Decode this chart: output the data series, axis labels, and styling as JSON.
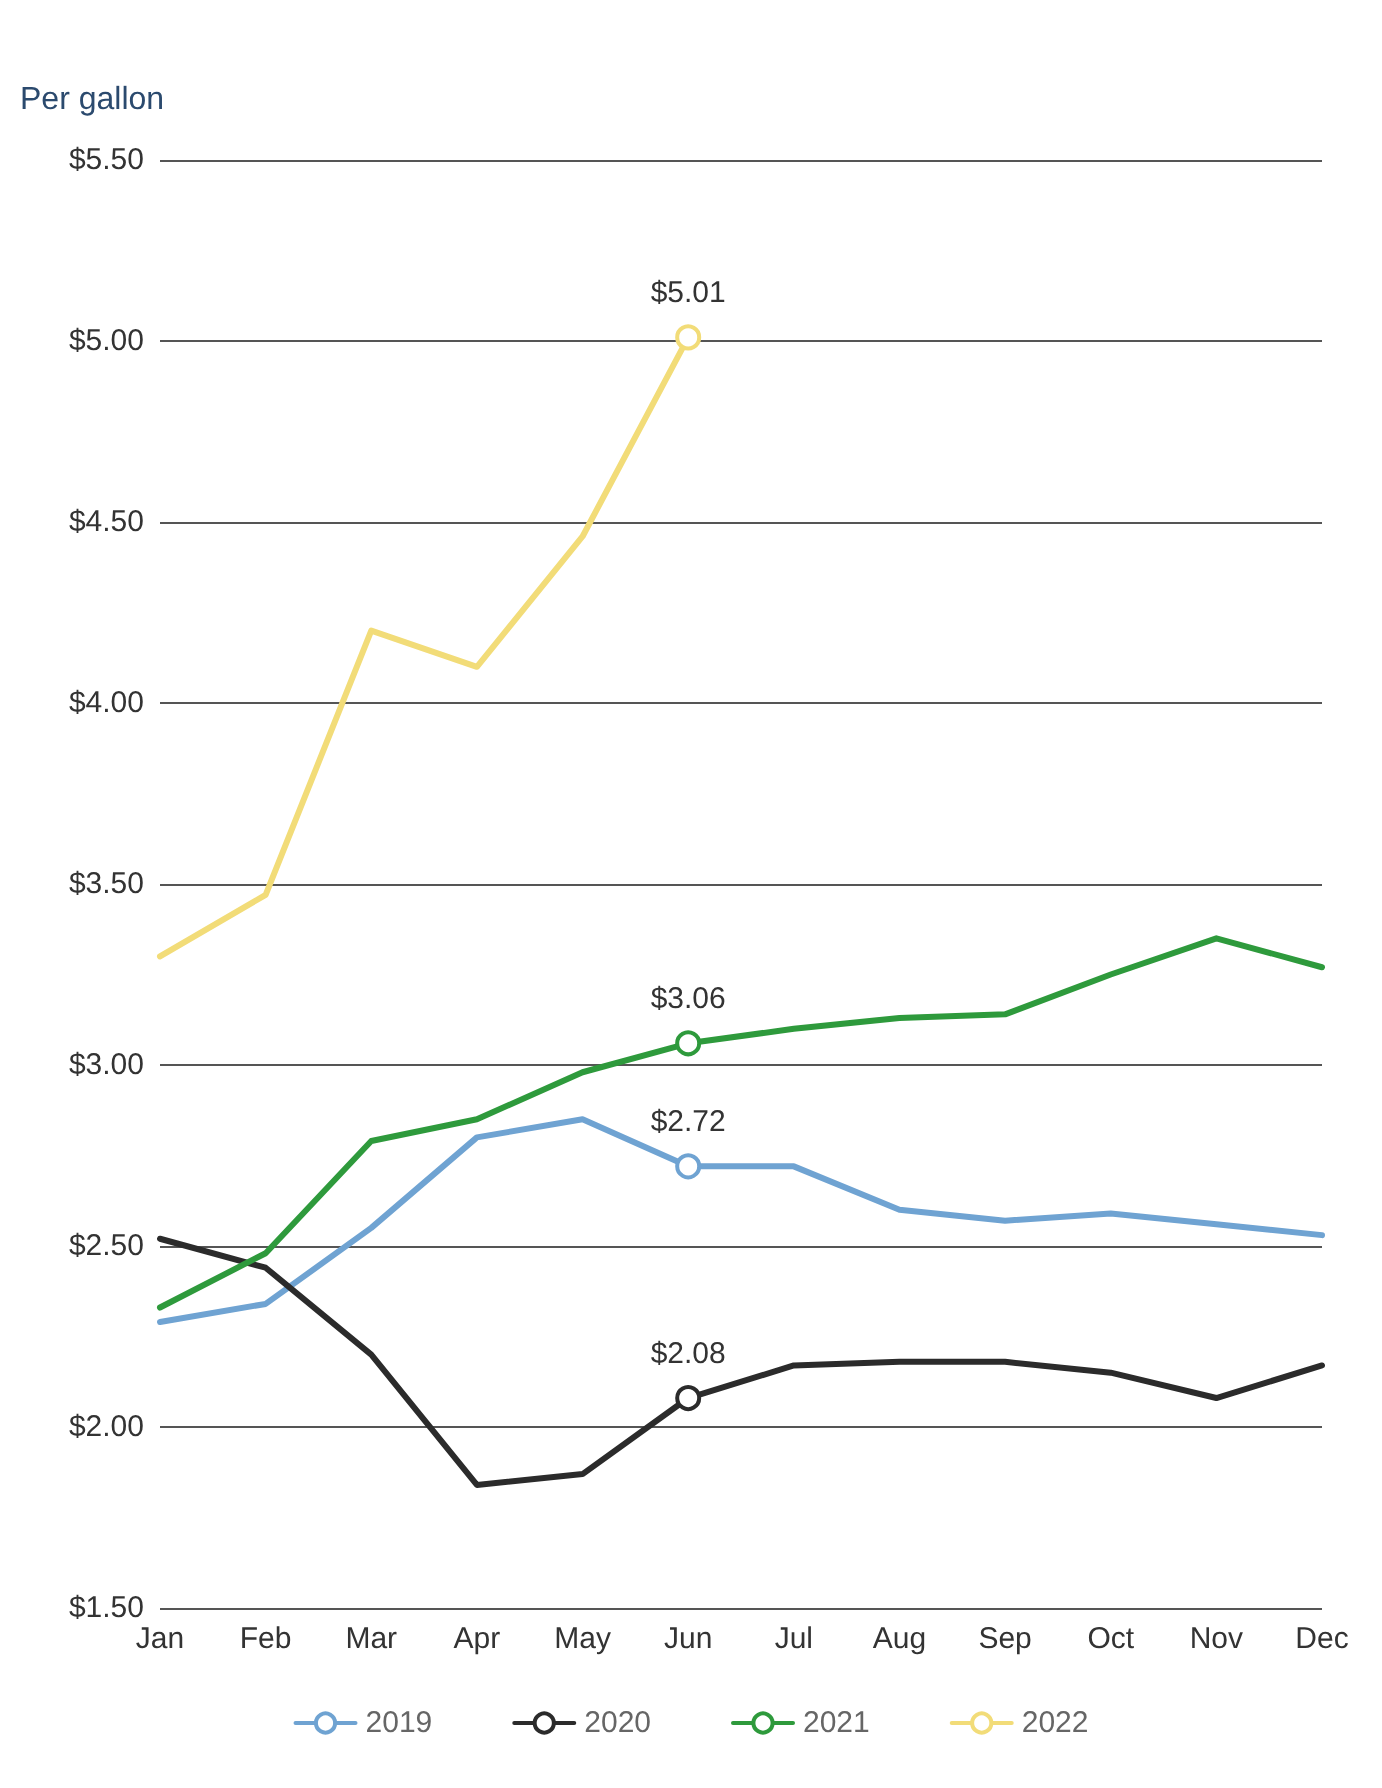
{
  "chart_data": {
    "type": "line",
    "ylabel": "Per gallon",
    "categories": [
      "Jan",
      "Feb",
      "Mar",
      "Apr",
      "May",
      "Jun",
      "Jul",
      "Aug",
      "Sep",
      "Oct",
      "Nov",
      "Dec"
    ],
    "series": [
      {
        "name": "2019",
        "color": "#6fa3d2",
        "values": [
          2.29,
          2.34,
          2.55,
          2.8,
          2.85,
          2.72,
          2.72,
          2.6,
          2.57,
          2.59,
          2.56,
          2.53
        ],
        "value_labels": [
          null,
          null,
          null,
          null,
          null,
          "$2.72",
          null,
          null,
          null,
          null,
          null,
          null
        ]
      },
      {
        "name": "2020",
        "color": "#2b2b2b",
        "values": [
          2.52,
          2.44,
          2.2,
          1.84,
          1.87,
          2.08,
          2.17,
          2.18,
          2.18,
          2.15,
          2.08,
          2.17
        ],
        "value_labels": [
          null,
          null,
          null,
          null,
          null,
          "$2.08",
          null,
          null,
          null,
          null,
          null,
          null
        ]
      },
      {
        "name": "2021",
        "color": "#2e9a3c",
        "values": [
          2.33,
          2.48,
          2.79,
          2.85,
          2.98,
          3.06,
          3.1,
          3.13,
          3.14,
          3.25,
          3.35,
          3.27
        ],
        "value_labels": [
          null,
          null,
          null,
          null,
          null,
          "$3.06",
          null,
          null,
          null,
          null,
          null,
          null
        ]
      },
      {
        "name": "2022",
        "color": "#f2dc78",
        "values": [
          3.3,
          3.47,
          4.2,
          4.1,
          4.46,
          5.01,
          null,
          null,
          null,
          null,
          null,
          null
        ],
        "value_labels": [
          null,
          null,
          null,
          null,
          null,
          "$5.01",
          null,
          null,
          null,
          null,
          null,
          null
        ]
      }
    ],
    "ylim": [
      1.5,
      5.5
    ],
    "yticks": [
      {
        "value": 1.5,
        "label": "$1.50"
      },
      {
        "value": 2,
        "label": "$2.00"
      },
      {
        "value": 2.5,
        "label": "$2.50"
      },
      {
        "value": 3,
        "label": "$3.00"
      },
      {
        "value": 3.5,
        "label": "$3.50"
      },
      {
        "value": 4,
        "label": "$4.00"
      },
      {
        "value": 4.5,
        "label": "$4.50"
      },
      {
        "value": 5,
        "label": "$5.00"
      },
      {
        "value": 5.5,
        "label": "$5.50"
      }
    ],
    "grid": "y",
    "legend": "bottom",
    "marker": "none",
    "line_style": "solid"
  }
}
